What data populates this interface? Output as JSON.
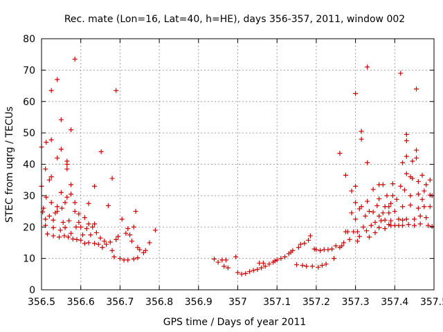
{
  "chart_data": {
    "type": "scatter",
    "title": "Rec. mate (Lon=16, Lat=40, h=HE), days 356-357, 2011, window 002",
    "xlabel": "GPS time / Days of year 2011",
    "ylabel": "STEC from uqrg / TECUs",
    "xlim": [
      356.5,
      357.5
    ],
    "ylim": [
      0,
      80
    ],
    "xticks": [
      356.5,
      356.6,
      356.7,
      356.8,
      356.9,
      357.0,
      357.1,
      357.2,
      357.3,
      357.4,
      357.5
    ],
    "xtick_labels": [
      "356.5",
      "356.6",
      "356.7",
      "356.8",
      "356.9",
      "357",
      "357.1",
      "357.2",
      "357.3",
      "357.4",
      "357.5"
    ],
    "yticks": [
      0,
      10,
      20,
      30,
      40,
      50,
      60,
      70,
      80
    ],
    "ytick_labels": [
      "0",
      "10",
      "20",
      "30",
      "40",
      "50",
      "60",
      "70",
      "80"
    ],
    "grid": true,
    "marker": "+",
    "color": "#cc0000",
    "points": [
      [
        356.5,
        45.5
      ],
      [
        356.503,
        24.8
      ],
      [
        356.5,
        33.0
      ],
      [
        356.505,
        26.0
      ],
      [
        356.51,
        38.5
      ],
      [
        356.512,
        47.0
      ],
      [
        356.512,
        29.5
      ],
      [
        356.51,
        22.5
      ],
      [
        356.51,
        20.5
      ],
      [
        356.515,
        17.8
      ],
      [
        356.52,
        35.0
      ],
      [
        356.52,
        23.5
      ],
      [
        356.525,
        47.8
      ],
      [
        356.525,
        36.0
      ],
      [
        356.525,
        63.5
      ],
      [
        356.525,
        27.8
      ],
      [
        356.53,
        22.2
      ],
      [
        356.53,
        19.8
      ],
      [
        356.53,
        17.2
      ],
      [
        356.535,
        24.5
      ],
      [
        356.54,
        67.0
      ],
      [
        356.54,
        42.0
      ],
      [
        356.54,
        26.5
      ],
      [
        356.54,
        25.0
      ],
      [
        356.545,
        16.8
      ],
      [
        356.548,
        19.0
      ],
      [
        356.55,
        54.2
      ],
      [
        356.55,
        44.8
      ],
      [
        356.55,
        31.0
      ],
      [
        356.552,
        26.0
      ],
      [
        356.555,
        21.5
      ],
      [
        356.558,
        17.2
      ],
      [
        356.56,
        27.8
      ],
      [
        356.56,
        19.8
      ],
      [
        356.565,
        41.0
      ],
      [
        356.565,
        40.0
      ],
      [
        356.565,
        38.5
      ],
      [
        356.565,
        29.5
      ],
      [
        356.568,
        16.8
      ],
      [
        356.57,
        22.0
      ],
      [
        356.575,
        51.0
      ],
      [
        356.575,
        33.5
      ],
      [
        356.575,
        30.5
      ],
      [
        356.575,
        18.0
      ],
      [
        356.58,
        16.2
      ],
      [
        356.585,
        73.5
      ],
      [
        356.585,
        27.8
      ],
      [
        356.585,
        25.0
      ],
      [
        356.588,
        20.0
      ],
      [
        356.59,
        16.0
      ],
      [
        356.595,
        24.2
      ],
      [
        356.595,
        21.5
      ],
      [
        356.6,
        20.0
      ],
      [
        356.6,
        15.8
      ],
      [
        356.605,
        17.5
      ],
      [
        356.61,
        23.0
      ],
      [
        356.61,
        14.8
      ],
      [
        356.615,
        19.5
      ],
      [
        356.62,
        27.5
      ],
      [
        356.62,
        21.0
      ],
      [
        356.62,
        15.0
      ],
      [
        356.625,
        17.5
      ],
      [
        356.63,
        20.0
      ],
      [
        356.635,
        33.0
      ],
      [
        356.635,
        21.0
      ],
      [
        356.635,
        14.8
      ],
      [
        356.64,
        18.2
      ],
      [
        356.645,
        14.5
      ],
      [
        356.65,
        16.5
      ],
      [
        356.652,
        44.0
      ],
      [
        356.655,
        13.5
      ],
      [
        356.66,
        15.5
      ],
      [
        356.665,
        14.5
      ],
      [
        356.67,
        26.8
      ],
      [
        356.675,
        15.2
      ],
      [
        356.68,
        12.5
      ],
      [
        356.68,
        35.5
      ],
      [
        356.685,
        10.5
      ],
      [
        356.69,
        63.5
      ],
      [
        356.69,
        16.0
      ],
      [
        356.695,
        17.0
      ],
      [
        356.7,
        10.0
      ],
      [
        356.705,
        22.5
      ],
      [
        356.71,
        9.5
      ],
      [
        356.715,
        18.0
      ],
      [
        356.72,
        19.5
      ],
      [
        356.72,
        9.5
      ],
      [
        356.725,
        17.5
      ],
      [
        356.73,
        15.5
      ],
      [
        356.735,
        20.0
      ],
      [
        356.735,
        9.8
      ],
      [
        356.74,
        25.0
      ],
      [
        356.745,
        10.2
      ],
      [
        356.745,
        13.5
      ],
      [
        356.75,
        12.8
      ],
      [
        356.76,
        11.8
      ],
      [
        356.765,
        12.5
      ],
      [
        356.775,
        15.0
      ],
      [
        356.79,
        19.0
      ],
      [
        356.94,
        9.8
      ],
      [
        356.95,
        8.8
      ],
      [
        356.96,
        9.5
      ],
      [
        356.965,
        7.5
      ],
      [
        356.97,
        9.5
      ],
      [
        356.975,
        7.0
      ],
      [
        356.995,
        10.5
      ],
      [
        357.0,
        5.5
      ],
      [
        357.01,
        5.0
      ],
      [
        357.02,
        5.2
      ],
      [
        357.03,
        5.8
      ],
      [
        357.04,
        6.2
      ],
      [
        357.05,
        6.5
      ],
      [
        357.055,
        8.5
      ],
      [
        357.06,
        7.0
      ],
      [
        357.065,
        8.5
      ],
      [
        357.07,
        7.5
      ],
      [
        357.08,
        8.2
      ],
      [
        357.09,
        8.8
      ],
      [
        357.095,
        9.2
      ],
      [
        357.1,
        9.5
      ],
      [
        357.11,
        10.0
      ],
      [
        357.12,
        10.5
      ],
      [
        357.13,
        11.5
      ],
      [
        357.135,
        12.0
      ],
      [
        357.14,
        12.5
      ],
      [
        357.15,
        8.0
      ],
      [
        357.155,
        13.5
      ],
      [
        357.16,
        14.5
      ],
      [
        357.165,
        7.8
      ],
      [
        357.17,
        14.8
      ],
      [
        357.175,
        7.5
      ],
      [
        357.18,
        15.8
      ],
      [
        357.185,
        17.2
      ],
      [
        357.19,
        7.5
      ],
      [
        357.195,
        13.0
      ],
      [
        357.2,
        12.8
      ],
      [
        357.205,
        7.2
      ],
      [
        357.21,
        12.5
      ],
      [
        357.215,
        7.8
      ],
      [
        357.22,
        12.8
      ],
      [
        357.225,
        8.2
      ],
      [
        357.23,
        12.8
      ],
      [
        357.24,
        13.0
      ],
      [
        357.245,
        10.0
      ],
      [
        357.25,
        14.0
      ],
      [
        357.26,
        43.5
      ],
      [
        357.26,
        13.5
      ],
      [
        357.265,
        14.0
      ],
      [
        357.27,
        15.0
      ],
      [
        357.275,
        36.5
      ],
      [
        357.275,
        18.5
      ],
      [
        357.28,
        18.5
      ],
      [
        357.285,
        16.0
      ],
      [
        357.29,
        31.5
      ],
      [
        357.29,
        24.5
      ],
      [
        357.295,
        18.5
      ],
      [
        357.3,
        62.5
      ],
      [
        357.3,
        33.0
      ],
      [
        357.3,
        27.8
      ],
      [
        357.3,
        22.5
      ],
      [
        357.305,
        18.5
      ],
      [
        357.305,
        15.5
      ],
      [
        357.31,
        25.8
      ],
      [
        357.31,
        17.0
      ],
      [
        357.315,
        50.5
      ],
      [
        357.315,
        48.0
      ],
      [
        357.315,
        26.5
      ],
      [
        357.32,
        20.0
      ],
      [
        357.325,
        23.5
      ],
      [
        357.328,
        18.8
      ],
      [
        357.33,
        71.0
      ],
      [
        357.33,
        40.5
      ],
      [
        357.33,
        28.2
      ],
      [
        357.335,
        25.0
      ],
      [
        357.335,
        16.8
      ],
      [
        357.34,
        20.5
      ],
      [
        357.345,
        32.0
      ],
      [
        357.345,
        24.8
      ],
      [
        357.35,
        21.5
      ],
      [
        357.35,
        18.2
      ],
      [
        357.355,
        26.8
      ],
      [
        357.36,
        33.5
      ],
      [
        357.36,
        29.0
      ],
      [
        357.36,
        23.5
      ],
      [
        357.36,
        19.8
      ],
      [
        357.365,
        22.0
      ],
      [
        357.37,
        33.5
      ],
      [
        357.37,
        24.5
      ],
      [
        357.375,
        26.5
      ],
      [
        357.375,
        22.2
      ],
      [
        357.375,
        19.5
      ],
      [
        357.38,
        30.0
      ],
      [
        357.385,
        26.5
      ],
      [
        357.385,
        24.5
      ],
      [
        357.385,
        20.8
      ],
      [
        357.39,
        27.5
      ],
      [
        357.39,
        22.0
      ],
      [
        357.39,
        20.5
      ],
      [
        357.395,
        33.8
      ],
      [
        357.395,
        30.0
      ],
      [
        357.4,
        25.0
      ],
      [
        357.4,
        20.5
      ],
      [
        357.405,
        28.8
      ],
      [
        357.41,
        22.5
      ],
      [
        357.41,
        20.5
      ],
      [
        357.415,
        69.0
      ],
      [
        357.415,
        33.0
      ],
      [
        357.42,
        40.5
      ],
      [
        357.42,
        26.5
      ],
      [
        357.42,
        22.2
      ],
      [
        357.42,
        20.5
      ],
      [
        357.425,
        31.8
      ],
      [
        357.43,
        49.5
      ],
      [
        357.43,
        47.5
      ],
      [
        357.43,
        42.5
      ],
      [
        357.43,
        37.0
      ],
      [
        357.43,
        22.5
      ],
      [
        357.435,
        20.8
      ],
      [
        357.44,
        36.0
      ],
      [
        357.44,
        30.0
      ],
      [
        357.44,
        27.0
      ],
      [
        357.445,
        41.0
      ],
      [
        357.445,
        35.5
      ],
      [
        357.45,
        22.5
      ],
      [
        357.45,
        20.5
      ],
      [
        357.455,
        64.0
      ],
      [
        357.455,
        44.5
      ],
      [
        357.455,
        42.0
      ],
      [
        357.46,
        34.5
      ],
      [
        357.46,
        30.5
      ],
      [
        357.46,
        26.0
      ],
      [
        357.465,
        23.5
      ],
      [
        357.465,
        21.0
      ],
      [
        357.47,
        36.5
      ],
      [
        357.47,
        28.8
      ],
      [
        357.475,
        31.5
      ],
      [
        357.475,
        26.5
      ],
      [
        357.48,
        33.5
      ],
      [
        357.48,
        23.0
      ],
      [
        357.485,
        20.5
      ],
      [
        357.49,
        35.0
      ],
      [
        357.49,
        30.2
      ],
      [
        357.49,
        26.5
      ],
      [
        357.495,
        30.0
      ],
      [
        357.495,
        20.2
      ]
    ]
  }
}
